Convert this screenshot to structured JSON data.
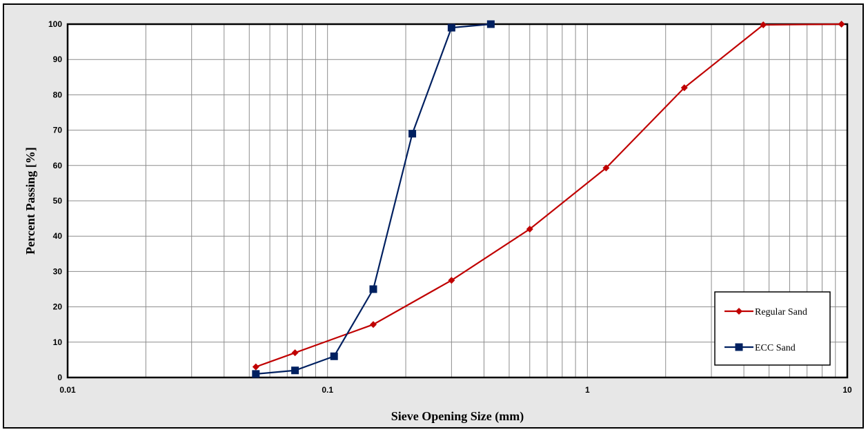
{
  "chart_data": {
    "type": "line",
    "xlabel": "Sieve Opening Size (mm)",
    "ylabel": "Percent Passing [%]",
    "x_scale": "log",
    "xlim": [
      0.01,
      10
    ],
    "ylim": [
      0,
      100
    ],
    "x_ticks": [
      "0.01",
      "0.1",
      "1",
      "10"
    ],
    "y_ticks": [
      "0",
      "10",
      "20",
      "30",
      "40",
      "50",
      "60",
      "70",
      "80",
      "90",
      "100"
    ],
    "grid": true,
    "legend_position": "bottom-right",
    "series": [
      {
        "name": "Regular Sand",
        "color": "#c00000",
        "marker": "diamond",
        "x": [
          0.053,
          0.075,
          0.15,
          0.3,
          0.6,
          1.18,
          2.36,
          4.75,
          9.5
        ],
        "y": [
          3,
          7,
          15,
          27.5,
          42,
          59.3,
          82,
          99.8,
          100
        ]
      },
      {
        "name": "ECC Sand",
        "color": "#002060",
        "marker": "square",
        "x": [
          0.053,
          0.075,
          0.106,
          0.15,
          0.212,
          0.3,
          0.425
        ],
        "y": [
          1,
          2,
          6,
          25,
          69,
          99,
          100
        ]
      }
    ]
  }
}
